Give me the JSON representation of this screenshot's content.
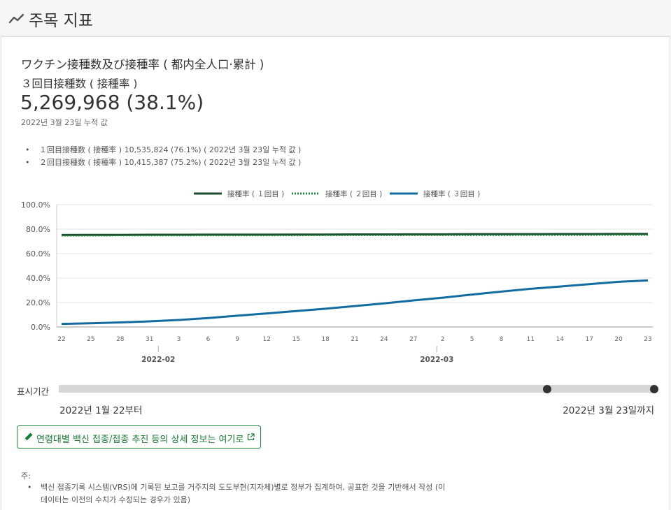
{
  "header": {
    "title": "주목 지표",
    "icon": "trend-line-icon"
  },
  "card": {
    "title": "ワクチン接種数及び接種率 ( 都内全人口·累計 )",
    "subtitle": "３回目接種数 ( 接種率 )",
    "main_value": "5,269,968 (38.1%)",
    "main_date": "2022년 3월 23일 누적 값",
    "bullets": [
      "１回目接種数 ( 接種率 )  10,535,824 (76.1%) ( 2022년 3월 23일 누적 값 )",
      "２回目接種数 ( 接種率 )  10,415,387 (75.2%) ( 2022년 3월 23일 누적 값 )"
    ]
  },
  "chart_data": {
    "type": "line",
    "legend_position": "top",
    "grid": true,
    "ylim": [
      0,
      100
    ],
    "y_ticks": [
      "100.0%",
      "80.0%",
      "60.0%",
      "40.0%",
      "20.0%",
      "0.0%"
    ],
    "x_tick_labels": [
      "22",
      "25",
      "28",
      "31",
      "3",
      "6",
      "9",
      "12",
      "15",
      "18",
      "21",
      "24",
      "27",
      "2",
      "5",
      "8",
      "11",
      "14",
      "17",
      "20",
      "23"
    ],
    "x_month_labels": [
      "2022-02",
      "2022-03"
    ],
    "x": [
      "2022-01-22",
      "2022-01-25",
      "2022-01-28",
      "2022-01-31",
      "2022-02-03",
      "2022-02-06",
      "2022-02-09",
      "2022-02-12",
      "2022-02-15",
      "2022-02-18",
      "2022-02-21",
      "2022-02-24",
      "2022-02-27",
      "2022-03-02",
      "2022-03-05",
      "2022-03-08",
      "2022-03-11",
      "2022-03-14",
      "2022-03-17",
      "2022-03-20",
      "2022-03-23"
    ],
    "series": [
      {
        "name": "接種率 ( １回目 )",
        "color": "#1b4d2e",
        "style": "solid",
        "values": [
          75.2,
          75.3,
          75.3,
          75.4,
          75.4,
          75.5,
          75.5,
          75.5,
          75.6,
          75.6,
          75.7,
          75.7,
          75.8,
          75.8,
          75.9,
          75.9,
          75.9,
          76.0,
          76.0,
          76.1,
          76.1
        ]
      },
      {
        "name": "接種率 ( ２回目 )",
        "color": "#1e8a3c",
        "style": "dotted",
        "values": [
          74.6,
          74.6,
          74.7,
          74.7,
          74.7,
          74.8,
          74.8,
          74.8,
          74.8,
          74.9,
          74.9,
          74.9,
          75.0,
          75.0,
          75.0,
          75.0,
          75.1,
          75.1,
          75.1,
          75.2,
          75.2
        ]
      },
      {
        "name": "接種率 ( ３回目 )",
        "color": "#126ba1",
        "style": "solid",
        "values": [
          2.5,
          3.0,
          3.7,
          4.6,
          5.7,
          7.3,
          9.2,
          11.1,
          13.0,
          14.9,
          17.1,
          19.3,
          21.7,
          23.9,
          26.5,
          28.9,
          31.2,
          33.1,
          35.0,
          36.9,
          38.1
        ]
      }
    ]
  },
  "slider": {
    "label": "표시기간",
    "start_label": "2022년 1월 22부터",
    "end_label": "2022년 3월 23일까지",
    "knob_start_fraction": 0.82,
    "knob_end_fraction": 1.0
  },
  "link_button": {
    "label": "연령대별 백신 접종/접종 추진 등의 상세 정보는 여기로",
    "icon": "pencil-icon",
    "ext_icon": "external-link-icon"
  },
  "notes": {
    "title": "주:",
    "items": [
      "백신 접종기록 시스템(VRS)에 기록된 보고를 거주지의 도도부현(지자체)별로 정부가 집계하여, 공표한 것을 기반해서 작성 (이 데이터는 이전의 수치가 수정되는 경우가 있음)"
    ]
  }
}
